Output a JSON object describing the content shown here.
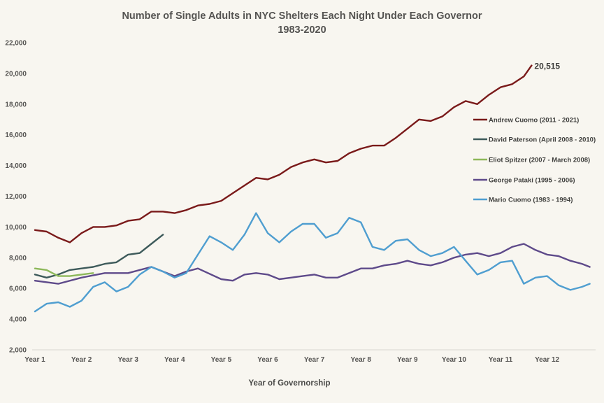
{
  "chart_data": {
    "type": "line",
    "title": "Number of Single Adults in NYC Shelters Each Night Under Each Governor",
    "subtitle": "1983-2020",
    "xlabel": "Year of Governorship",
    "ylabel": "",
    "ylim": [
      2000,
      22000
    ],
    "yticks": [
      "2,000",
      "4,000",
      "6,000",
      "8,000",
      "10,000",
      "12,000",
      "14,000",
      "16,000",
      "18,000",
      "20,000",
      "22,000"
    ],
    "ytick_values": [
      2000,
      4000,
      6000,
      8000,
      10000,
      12000,
      14000,
      16000,
      18000,
      20000,
      22000
    ],
    "xticks": [
      "Year 1",
      "Year 2",
      "Year 3",
      "Year 4",
      "Year 5",
      "Year 6",
      "Year 7",
      "Year 8",
      "Year 9",
      "Year 10",
      "Year 11",
      "Year 12"
    ],
    "x_unit": "months since start of governorship (sampled quarterly)",
    "grid": false,
    "legend_position": "right",
    "annotation": {
      "text": "20,515",
      "series": "Andrew Cuomo (2011 - 2021)"
    },
    "series": [
      {
        "name": "Andrew Cuomo (2011 - 2021)",
        "color": "#7a1a1a",
        "x": [
          0,
          3,
          6,
          9,
          12,
          15,
          18,
          21,
          24,
          27,
          30,
          33,
          36,
          39,
          42,
          45,
          48,
          51,
          54,
          57,
          60,
          63,
          66,
          69,
          72,
          75,
          78,
          81,
          84,
          87,
          90,
          93,
          96,
          99,
          102,
          105,
          108,
          111,
          114,
          117,
          120,
          123,
          126,
          128
        ],
        "values": [
          9800,
          9700,
          9300,
          9000,
          9600,
          10000,
          10000,
          10100,
          10400,
          10500,
          11000,
          11000,
          10900,
          11100,
          11400,
          11500,
          11700,
          12200,
          12700,
          13200,
          13100,
          13400,
          13900,
          14200,
          14400,
          14200,
          14300,
          14800,
          15100,
          15300,
          15300,
          15800,
          16400,
          17000,
          16900,
          17200,
          17800,
          18200,
          18000,
          18600,
          19100,
          19300,
          19800,
          20515
        ]
      },
      {
        "name": "David Paterson (April 2008 - 2010)",
        "color": "#3d5a5a",
        "x": [
          0,
          3,
          6,
          9,
          12,
          15,
          18,
          21,
          24,
          27,
          30,
          33
        ],
        "values": [
          6900,
          6700,
          6900,
          7200,
          7300,
          7400,
          7600,
          7700,
          8200,
          8300,
          8900,
          9500
        ]
      },
      {
        "name": "Eliot Spitzer (2007 - March 2008)",
        "color": "#8db85a",
        "x": [
          0,
          3,
          6,
          9,
          12,
          15
        ],
        "values": [
          7300,
          7200,
          6800,
          6800,
          6900,
          7000
        ]
      },
      {
        "name": "George Pataki (1995 - 2006)",
        "color": "#5e4a8a",
        "x": [
          0,
          6,
          12,
          18,
          24,
          30,
          36,
          39,
          42,
          48,
          51,
          54,
          57,
          60,
          63,
          66,
          69,
          72,
          75,
          78,
          81,
          84,
          87,
          90,
          93,
          96,
          99,
          102,
          105,
          108,
          111,
          114,
          117,
          120,
          123,
          126,
          129,
          132,
          135,
          138,
          141,
          143
        ],
        "values": [
          6500,
          6300,
          6700,
          7000,
          7000,
          7400,
          6800,
          7100,
          7300,
          6600,
          6500,
          6900,
          7000,
          6900,
          6600,
          6700,
          6800,
          6900,
          6700,
          6700,
          7000,
          7300,
          7300,
          7500,
          7600,
          7800,
          7600,
          7500,
          7700,
          8000,
          8200,
          8300,
          8100,
          8300,
          8700,
          8900,
          8500,
          8200,
          8100,
          7800,
          7600,
          7400
        ]
      },
      {
        "name": "Mario Cuomo (1983 - 1994)",
        "color": "#4f9ed0",
        "x": [
          0,
          3,
          6,
          9,
          12,
          15,
          18,
          21,
          24,
          27,
          30,
          33,
          36,
          39,
          42,
          45,
          48,
          51,
          54,
          57,
          60,
          63,
          66,
          69,
          72,
          75,
          78,
          81,
          84,
          87,
          90,
          93,
          96,
          99,
          102,
          105,
          108,
          111,
          114,
          117,
          120,
          123,
          126,
          129,
          132,
          135,
          138,
          141,
          143
        ],
        "values": [
          4500,
          5000,
          5100,
          4800,
          5200,
          6100,
          6400,
          5800,
          6100,
          6900,
          7400,
          7100,
          6700,
          7000,
          8200,
          9400,
          9000,
          8500,
          9500,
          10900,
          9600,
          9000,
          9700,
          10200,
          10200,
          9300,
          9600,
          10600,
          10300,
          8700,
          8500,
          9100,
          9200,
          8500,
          8100,
          8300,
          8700,
          7800,
          6900,
          7200,
          7700,
          7800,
          6300,
          6700,
          6800,
          6200,
          5900,
          6100,
          6300
        ]
      }
    ]
  }
}
